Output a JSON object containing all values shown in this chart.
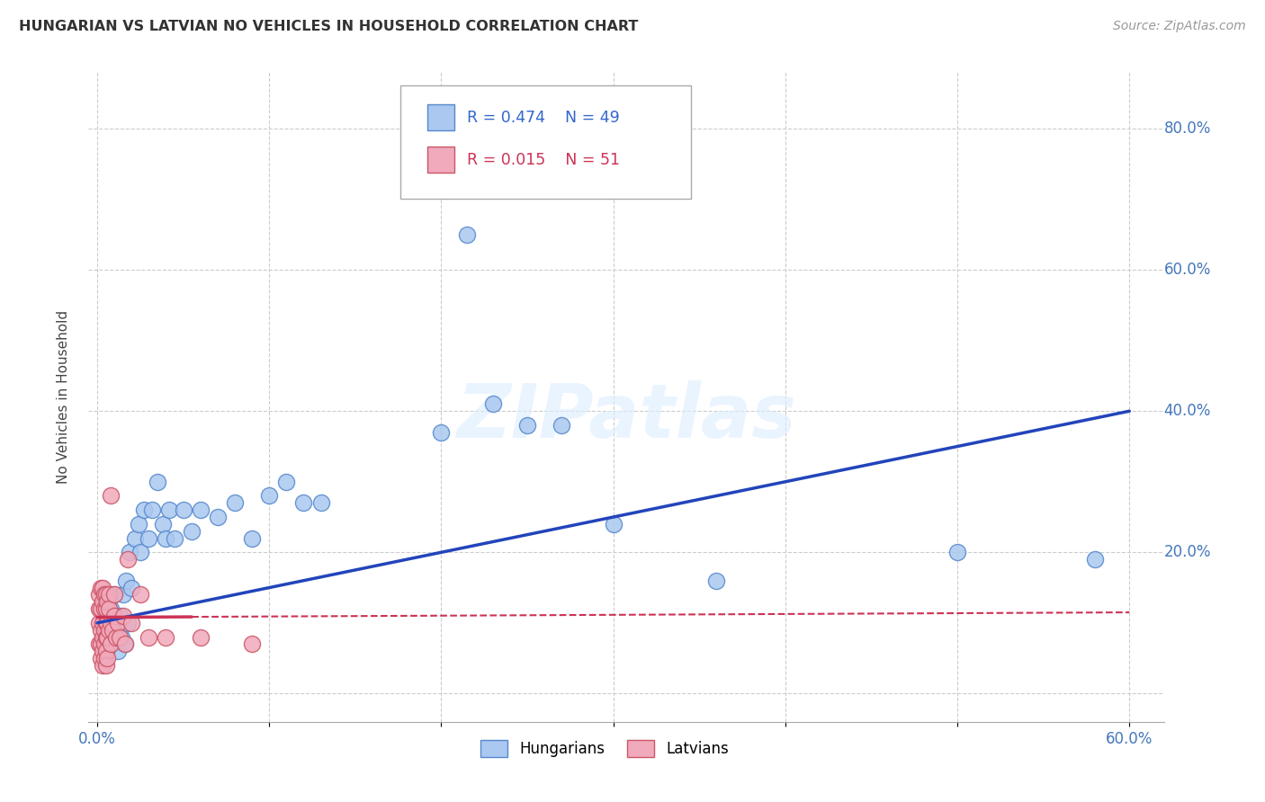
{
  "title": "HUNGARIAN VS LATVIAN NO VEHICLES IN HOUSEHOLD CORRELATION CHART",
  "source": "Source: ZipAtlas.com",
  "ylabel": "No Vehicles in Household",
  "xlim": [
    -0.005,
    0.62
  ],
  "ylim": [
    -0.04,
    0.88
  ],
  "yticks": [
    0.0,
    0.2,
    0.4,
    0.6,
    0.8
  ],
  "xticks": [
    0.0,
    0.1,
    0.2,
    0.3,
    0.4,
    0.5,
    0.6
  ],
  "legend_R_hungarian": "R = 0.474",
  "legend_N_hungarian": "N = 49",
  "legend_R_latvian": "R = 0.015",
  "legend_N_latvian": "N = 51",
  "hungarian_color": "#aac8f0",
  "hungarian_edge_color": "#5588cc",
  "latvian_color": "#f0aabb",
  "latvian_edge_color": "#cc5566",
  "trendline_hungarian_color": "#2244bb",
  "trendline_latvian_color": "#cc3355",
  "watermark": "ZIPatlas",
  "hungarian_x": [
    0.003,
    0.004,
    0.005,
    0.006,
    0.006,
    0.007,
    0.008,
    0.009,
    0.01,
    0.011,
    0.012,
    0.013,
    0.014,
    0.015,
    0.016,
    0.017,
    0.018,
    0.019,
    0.02,
    0.022,
    0.024,
    0.025,
    0.027,
    0.03,
    0.032,
    0.035,
    0.038,
    0.04,
    0.042,
    0.045,
    0.05,
    0.055,
    0.06,
    0.07,
    0.08,
    0.09,
    0.1,
    0.11,
    0.12,
    0.13,
    0.2,
    0.215,
    0.23,
    0.25,
    0.27,
    0.3,
    0.36,
    0.5,
    0.58
  ],
  "hungarian_y": [
    0.1,
    0.12,
    0.08,
    0.14,
    0.06,
    0.09,
    0.12,
    0.07,
    0.14,
    0.1,
    0.06,
    0.11,
    0.08,
    0.14,
    0.07,
    0.16,
    0.1,
    0.2,
    0.15,
    0.22,
    0.24,
    0.2,
    0.26,
    0.22,
    0.26,
    0.3,
    0.24,
    0.22,
    0.26,
    0.22,
    0.26,
    0.23,
    0.26,
    0.25,
    0.27,
    0.22,
    0.28,
    0.3,
    0.27,
    0.27,
    0.37,
    0.65,
    0.41,
    0.38,
    0.38,
    0.24,
    0.16,
    0.2,
    0.19
  ],
  "latvian_x": [
    0.001,
    0.001,
    0.001,
    0.001,
    0.002,
    0.002,
    0.002,
    0.002,
    0.002,
    0.003,
    0.003,
    0.003,
    0.003,
    0.003,
    0.003,
    0.004,
    0.004,
    0.004,
    0.004,
    0.004,
    0.005,
    0.005,
    0.005,
    0.005,
    0.005,
    0.005,
    0.006,
    0.006,
    0.006,
    0.006,
    0.007,
    0.007,
    0.007,
    0.008,
    0.008,
    0.008,
    0.009,
    0.01,
    0.01,
    0.011,
    0.012,
    0.013,
    0.015,
    0.016,
    0.018,
    0.02,
    0.025,
    0.03,
    0.04,
    0.06,
    0.09
  ],
  "latvian_y": [
    0.14,
    0.12,
    0.1,
    0.07,
    0.15,
    0.12,
    0.09,
    0.07,
    0.05,
    0.15,
    0.13,
    0.1,
    0.08,
    0.06,
    0.04,
    0.14,
    0.12,
    0.09,
    0.07,
    0.05,
    0.14,
    0.12,
    0.1,
    0.08,
    0.06,
    0.04,
    0.13,
    0.1,
    0.08,
    0.05,
    0.14,
    0.12,
    0.09,
    0.28,
    0.1,
    0.07,
    0.09,
    0.14,
    0.11,
    0.08,
    0.1,
    0.08,
    0.11,
    0.07,
    0.19,
    0.1,
    0.14,
    0.08,
    0.08,
    0.08,
    0.07
  ],
  "trendline_h_x0": 0.0,
  "trendline_h_y0": 0.1,
  "trendline_h_x1": 0.6,
  "trendline_h_y1": 0.4,
  "trendline_l_x0": 0.0,
  "trendline_l_y0": 0.108,
  "trendline_l_x1": 0.6,
  "trendline_l_y1": 0.115,
  "trendline_l_solid_end": 0.055
}
